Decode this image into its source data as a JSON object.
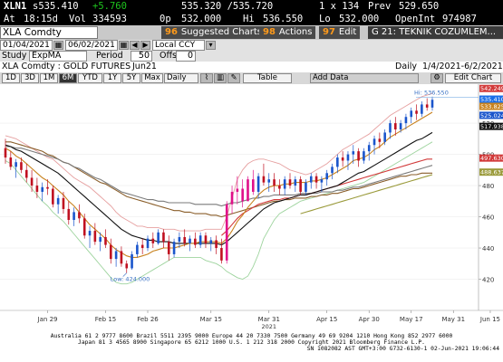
{
  "quote": {
    "ticker": "XLN1",
    "last": "s535.410",
    "change": "+5.760",
    "bid_ask": "535.320 /535.720",
    "size": "1 x 134",
    "prev_label": "Prev",
    "prev": "529.650",
    "at_label": "At",
    "time": "18:15d",
    "vol_label": "Vol",
    "vol": "334593",
    "op_label": "0p",
    "open": "532.000",
    "hi_label": "Hi",
    "high": "536.550",
    "lo_label": "Lo",
    "low": "532.000",
    "oi_label": "OpenInt",
    "open_interest": "974987"
  },
  "toolbar": {
    "security": "XLA Comdty",
    "suggested_num": "96",
    "suggested": "Suggested Charts",
    "actions_num": "98",
    "actions": "Actions",
    "edit_num": "97",
    "edit": "Edit",
    "page": "G 21: TEKNIK COZUMLEM..."
  },
  "dates": {
    "start": "01/04/2021",
    "end": "06/02/2021",
    "currency": "Local CCY"
  },
  "study": {
    "label": "Study",
    "name": "ExpMA",
    "period_label": "Period",
    "period": "50",
    "offset_label": "Offset",
    "offset": "0"
  },
  "header": {
    "name": "XLA Comdty : GOLD FUTURES",
    "contract": "Jun21",
    "freq": "Daily",
    "range": "1/4/2021-6/2/2021"
  },
  "periods": [
    "1D",
    "3D",
    "1M",
    "6M",
    "YTD",
    "1Y",
    "5Y",
    "Max"
  ],
  "selected_period": "6M",
  "period_select": "Daily",
  "tools": {
    "table": "Table",
    "add_data": "Add Data",
    "edit_chart": "Edit Chart"
  },
  "annotations": {
    "high": "Hi: 536.550",
    "low": "Low: 424.000"
  },
  "colors": {
    "up": "#1a55cc",
    "down": "#c01020",
    "special": "#e0108a"
  },
  "chart_data": {
    "type": "candlestick",
    "ylim": [
      400,
      545
    ],
    "y_ticks": [
      420,
      440,
      460,
      480,
      500,
      520
    ],
    "x_ticks": [
      "Jan 29",
      "Feb 15",
      "Feb 26",
      "Mar 15",
      "Mar 31",
      "Apr 15",
      "Apr 30",
      "May 17",
      "May 31",
      "Jun 15"
    ],
    "x_year_label": "2021",
    "candles": [
      [
        504,
        510,
        494,
        498
      ],
      [
        498,
        502,
        490,
        492
      ],
      [
        492,
        497,
        485,
        495
      ],
      [
        495,
        498,
        488,
        490
      ],
      [
        490,
        494,
        482,
        485
      ],
      [
        485,
        490,
        476,
        480
      ],
      [
        480,
        485,
        472,
        476
      ],
      [
        476,
        482,
        470,
        479
      ],
      [
        479,
        484,
        474,
        478
      ],
      [
        478,
        480,
        466,
        468
      ],
      [
        468,
        474,
        462,
        472
      ],
      [
        472,
        476,
        462,
        465
      ],
      [
        465,
        470,
        455,
        458
      ],
      [
        458,
        466,
        454,
        463
      ],
      [
        463,
        468,
        456,
        459
      ],
      [
        459,
        462,
        446,
        448
      ],
      [
        448,
        454,
        440,
        451
      ],
      [
        451,
        456,
        442,
        444
      ],
      [
        444,
        450,
        438,
        447
      ],
      [
        447,
        452,
        440,
        442
      ],
      [
        442,
        446,
        430,
        433
      ],
      [
        433,
        440,
        428,
        438
      ],
      [
        438,
        441,
        428,
        430
      ],
      [
        430,
        432,
        424,
        427
      ],
      [
        427,
        438,
        426,
        436
      ],
      [
        436,
        444,
        434,
        442
      ],
      [
        442,
        446,
        436,
        440
      ],
      [
        440,
        448,
        438,
        446
      ],
      [
        446,
        450,
        440,
        443
      ],
      [
        443,
        452,
        442,
        450
      ],
      [
        450,
        452,
        440,
        444
      ],
      [
        444,
        448,
        432,
        436
      ],
      [
        436,
        446,
        434,
        444
      ],
      [
        444,
        450,
        440,
        447
      ],
      [
        447,
        452,
        441,
        443
      ],
      [
        443,
        448,
        438,
        446
      ],
      [
        446,
        450,
        440,
        442
      ],
      [
        442,
        450,
        440,
        448
      ],
      [
        448,
        450,
        440,
        443
      ],
      [
        443,
        447,
        438,
        445
      ],
      [
        445,
        448,
        436,
        440
      ],
      [
        440,
        446,
        430,
        432
      ],
      [
        432,
        470,
        430,
        468
      ],
      [
        468,
        480,
        462,
        476
      ],
      [
        476,
        486,
        468,
        478
      ],
      [
        478,
        484,
        466,
        470
      ],
      [
        470,
        486,
        470,
        484
      ],
      [
        484,
        490,
        474,
        476
      ],
      [
        476,
        488,
        472,
        486
      ],
      [
        486,
        494,
        480,
        482
      ],
      [
        482,
        488,
        476,
        484
      ],
      [
        484,
        488,
        476,
        480
      ],
      [
        480,
        484,
        474,
        478
      ],
      [
        478,
        486,
        474,
        484
      ],
      [
        484,
        488,
        478,
        480
      ],
      [
        480,
        486,
        476,
        484
      ],
      [
        484,
        486,
        474,
        476
      ],
      [
        476,
        484,
        474,
        482
      ],
      [
        482,
        488,
        478,
        486
      ],
      [
        486,
        488,
        478,
        482
      ],
      [
        482,
        486,
        476,
        484
      ],
      [
        484,
        490,
        480,
        488
      ],
      [
        488,
        494,
        484,
        492
      ],
      [
        492,
        500,
        488,
        498
      ],
      [
        498,
        502,
        492,
        496
      ],
      [
        496,
        502,
        490,
        500
      ],
      [
        500,
        506,
        494,
        502
      ],
      [
        502,
        504,
        492,
        496
      ],
      [
        496,
        504,
        494,
        502
      ],
      [
        502,
        508,
        496,
        506
      ],
      [
        506,
        512,
        500,
        510
      ],
      [
        510,
        514,
        504,
        508
      ],
      [
        508,
        516,
        506,
        514
      ],
      [
        514,
        522,
        510,
        520
      ],
      [
        520,
        524,
        512,
        516
      ],
      [
        516,
        522,
        514,
        520
      ],
      [
        520,
        526,
        516,
        524
      ],
      [
        524,
        530,
        520,
        528
      ],
      [
        528,
        532,
        522,
        526
      ],
      [
        526,
        534,
        524,
        532
      ],
      [
        532,
        536,
        528,
        530
      ],
      [
        530,
        537,
        528,
        535
      ]
    ],
    "special_candles": [
      42,
      43,
      44,
      45,
      46,
      47
    ],
    "series": [
      {
        "name": "EMA short",
        "color": "#c8821e",
        "values": [
          504,
          502,
          499,
          497,
          494,
          491,
          488,
          485,
          483,
          480,
          477,
          474,
          470,
          467,
          463,
          459,
          455,
          452,
          449,
          446,
          442,
          439,
          437,
          435,
          434,
          434,
          435,
          436,
          438,
          439,
          440,
          440,
          440,
          441,
          442,
          443,
          443,
          444,
          444,
          444,
          444,
          443,
          446,
          451,
          457,
          461,
          466,
          470,
          474,
          477,
          479,
          480,
          480,
          481,
          481,
          482,
          482,
          482,
          483,
          483,
          484,
          485,
          487,
          489,
          491,
          493,
          496,
          497,
          498,
          500,
          503,
          505,
          508,
          511,
          513,
          515,
          517,
          519,
          521,
          523,
          525,
          527
        ]
      },
      {
        "name": "EMA mid",
        "color": "#111111",
        "values": [
          506,
          505,
          503,
          502,
          500,
          498,
          496,
          494,
          492,
          490,
          488,
          485,
          482,
          479,
          476,
          473,
          470,
          467,
          464,
          461,
          458,
          455,
          452,
          450,
          448,
          447,
          446,
          445,
          445,
          444,
          444,
          444,
          443,
          443,
          443,
          443,
          443,
          443,
          443,
          443,
          443,
          442,
          444,
          447,
          450,
          453,
          456,
          459,
          462,
          465,
          467,
          469,
          470,
          471,
          472,
          473,
          474,
          474,
          475,
          476,
          477,
          478,
          479,
          480,
          482,
          484,
          486,
          488,
          489,
          491,
          493,
          495,
          497,
          499,
          501,
          503,
          505,
          507,
          509,
          510,
          512,
          514
        ]
      },
      {
        "name": "EMA 50",
        "color": "#7a7a7a",
        "values": [
          505,
          505,
          504,
          504,
          503,
          502,
          501,
          500,
          499,
          498,
          497,
          495,
          494,
          492,
          491,
          489,
          487,
          485,
          484,
          482,
          480,
          478,
          476,
          475,
          474,
          473,
          472,
          471,
          471,
          470,
          470,
          469,
          469,
          469,
          469,
          469,
          468,
          468,
          468,
          468,
          468,
          467,
          468,
          469,
          469,
          470,
          471,
          472,
          472,
          473,
          473,
          474,
          474,
          474,
          474,
          474,
          475,
          475,
          475,
          475,
          476,
          476,
          476,
          477,
          477,
          478,
          479,
          479,
          480,
          481,
          482,
          483,
          484,
          485,
          486,
          487,
          488,
          489,
          490,
          491,
          492,
          493
        ]
      },
      {
        "name": "EMA long",
        "color": "#8a5e2a",
        "values": [
          508,
          508,
          507,
          506,
          505,
          504,
          503,
          502,
          500,
          499,
          497,
          495,
          494,
          492,
          490,
          488,
          486,
          484,
          482,
          481,
          479,
          477,
          475,
          473,
          472,
          471,
          470,
          469,
          468,
          467,
          466,
          465,
          464,
          464,
          463,
          463,
          462,
          462,
          462,
          461,
          461,
          460,
          461,
          462,
          463,
          464,
          465,
          466,
          467,
          468,
          469,
          470,
          470,
          471,
          471,
          472,
          472,
          472,
          473,
          473,
          474,
          474,
          475,
          475,
          476,
          477,
          478,
          478,
          479,
          480,
          481,
          482,
          483,
          484,
          485,
          486,
          486,
          487,
          487,
          488,
          488,
          488
        ]
      },
      {
        "name": "Red MA",
        "color": "#d23a3a",
        "values": [
          null,
          null,
          null,
          null,
          null,
          null,
          null,
          null,
          null,
          null,
          null,
          null,
          null,
          null,
          null,
          null,
          null,
          null,
          null,
          null,
          null,
          null,
          null,
          null,
          null,
          null,
          null,
          null,
          null,
          null,
          null,
          null,
          null,
          null,
          null,
          null,
          null,
          null,
          null,
          null,
          null,
          448,
          451,
          455,
          459,
          462,
          464,
          466,
          468,
          469,
          470,
          471,
          471,
          472,
          472,
          473,
          474,
          474,
          475,
          476,
          477,
          478,
          479,
          480,
          481,
          482,
          483,
          484,
          485,
          486,
          487,
          488,
          489,
          490,
          491,
          492,
          493,
          494,
          495,
          496,
          497,
          497
        ]
      },
      {
        "name": "Olive MA",
        "color": "#9a9a3a",
        "values": [
          null,
          null,
          null,
          null,
          null,
          null,
          null,
          null,
          null,
          null,
          null,
          null,
          null,
          null,
          null,
          null,
          null,
          null,
          null,
          null,
          null,
          null,
          null,
          null,
          null,
          null,
          null,
          null,
          null,
          null,
          null,
          null,
          null,
          null,
          null,
          null,
          null,
          null,
          null,
          null,
          null,
          null,
          null,
          null,
          null,
          null,
          null,
          null,
          null,
          null,
          null,
          null,
          null,
          null,
          null,
          null,
          462,
          463,
          464,
          465,
          466,
          467,
          468,
          469,
          470,
          471,
          472,
          473,
          474,
          475,
          476,
          477,
          478,
          479,
          480,
          481,
          482,
          483,
          484,
          485,
          486,
          487
        ]
      },
      {
        "name": "BB upper",
        "color": "#e6a0a0",
        "values": [
          512,
          511,
          510,
          508,
          506,
          504,
          502,
          500,
          498,
          497,
          494,
          491,
          488,
          485,
          483,
          481,
          479,
          476,
          473,
          470,
          467,
          463,
          460,
          458,
          456,
          454,
          454,
          453,
          453,
          453,
          452,
          452,
          452,
          451,
          451,
          451,
          451,
          451,
          452,
          452,
          452,
          452,
          460,
          472,
          484,
          490,
          494,
          496,
          497,
          497,
          496,
          495,
          494,
          492,
          490,
          489,
          488,
          487,
          488,
          490,
          492,
          494,
          497,
          500,
          503,
          505,
          507,
          509,
          511,
          513,
          516,
          519,
          522,
          525,
          527,
          529,
          531,
          533,
          535,
          537,
          538,
          539
        ]
      },
      {
        "name": "BB lower",
        "color": "#9ed49e",
        "values": [
          496,
          494,
          490,
          486,
          482,
          478,
          474,
          470,
          467,
          463,
          460,
          457,
          453,
          449,
          445,
          441,
          437,
          433,
          429,
          425,
          421,
          418,
          417,
          417,
          418,
          420,
          422,
          424,
          426,
          428,
          430,
          432,
          434,
          434,
          434,
          434,
          434,
          434,
          432,
          431,
          430,
          428,
          425,
          423,
          421,
          420,
          422,
          428,
          436,
          446,
          452,
          458,
          462,
          464,
          466,
          468,
          470,
          471,
          472,
          473,
          474,
          475,
          476,
          477,
          478,
          479,
          480,
          481,
          482,
          484,
          486,
          488,
          490,
          492,
          494,
          496,
          498,
          500,
          502,
          504,
          506,
          508
        ]
      }
    ],
    "price_labels": [
      {
        "value": "542.249",
        "color": "#d23a3a"
      },
      {
        "value": "535.410",
        "color": "#1a6ee8"
      },
      {
        "value": "533.825",
        "color": "#c8821e"
      },
      {
        "value": "525.024",
        "color": "#1a55cc"
      },
      {
        "value": "517.938",
        "color": "#111111"
      },
      {
        "value": "497.630",
        "color": "#d23a3a"
      },
      {
        "value": "488.637",
        "color": "#9a9a3a"
      }
    ]
  },
  "footer": {
    "line1": "Australia 61 2 9777 8600 Brazil 5511 2395 9000 Europe 44 20 7330 7500 Germany 49 69 9204 1210 Hong Kong 852 2977 6000",
    "line2": "Japan 81 3 4565 8900         Singapore 65 6212 1000       U.S. 1 212 318 2000         Copyright 2021 Bloomberg Finance L.P.",
    "line3": "SN 1082082 AST  GMT+3:00 G732-6130-1 02-Jun-2021 19:06:44"
  }
}
